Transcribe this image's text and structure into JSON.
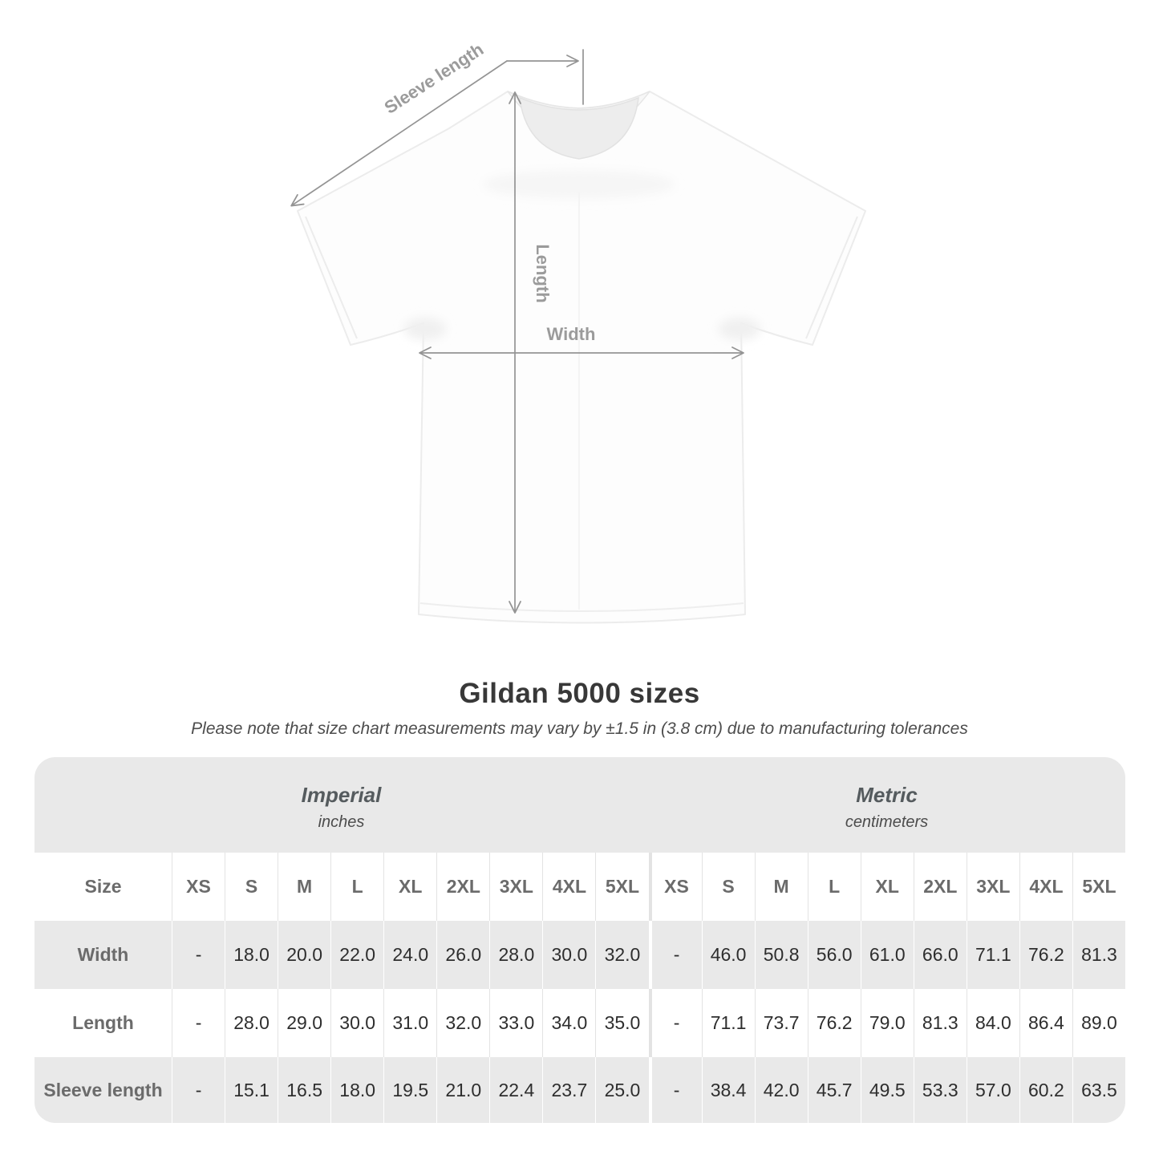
{
  "page": {
    "title": "Gildan 5000 sizes",
    "subtitle": "Please note that size chart measurements may vary by ±1.5 in (3.8 cm) due to manufacturing tolerances"
  },
  "diagram": {
    "sleeve_length_label": "Sleeve length",
    "length_label": "Length",
    "width_label": "Width"
  },
  "table": {
    "size_header": "Size",
    "size_columns": [
      "XS",
      "S",
      "M",
      "L",
      "XL",
      "2XL",
      "3XL",
      "4XL",
      "5XL"
    ],
    "unit_sections": [
      {
        "name": "Imperial",
        "unit": "inches"
      },
      {
        "name": "Metric",
        "unit": "centimeters"
      }
    ]
  },
  "chart_data": {
    "type": "table",
    "title": "Gildan 5000 sizes",
    "sections": [
      "Imperial (inches)",
      "Metric (centimeters)"
    ],
    "columns": [
      "XS",
      "S",
      "M",
      "L",
      "XL",
      "2XL",
      "3XL",
      "4XL",
      "5XL"
    ],
    "rows": [
      {
        "label": "Width",
        "imperial": [
          "-",
          "18.0",
          "20.0",
          "22.0",
          "24.0",
          "26.0",
          "28.0",
          "30.0",
          "32.0"
        ],
        "metric": [
          "-",
          "46.0",
          "50.8",
          "56.0",
          "61.0",
          "66.0",
          "71.1",
          "76.2",
          "81.3"
        ]
      },
      {
        "label": "Length",
        "imperial": [
          "-",
          "28.0",
          "29.0",
          "30.0",
          "31.0",
          "32.0",
          "33.0",
          "34.0",
          "35.0"
        ],
        "metric": [
          "-",
          "71.1",
          "73.7",
          "76.2",
          "79.0",
          "81.3",
          "84.0",
          "86.4",
          "89.0"
        ]
      },
      {
        "label": "Sleeve length",
        "imperial": [
          "-",
          "15.1",
          "16.5",
          "18.0",
          "19.5",
          "21.0",
          "22.4",
          "23.7",
          "25.0"
        ],
        "metric": [
          "-",
          "38.4",
          "42.0",
          "45.7",
          "49.5",
          "53.3",
          "57.0",
          "60.2",
          "63.5"
        ]
      }
    ]
  },
  "colors": {
    "table_band_gray": "#e9e9e9",
    "annotation_gray": "#9b9b9b",
    "value_text": "#2e2e2e",
    "header_text": "#6b6b6b"
  }
}
